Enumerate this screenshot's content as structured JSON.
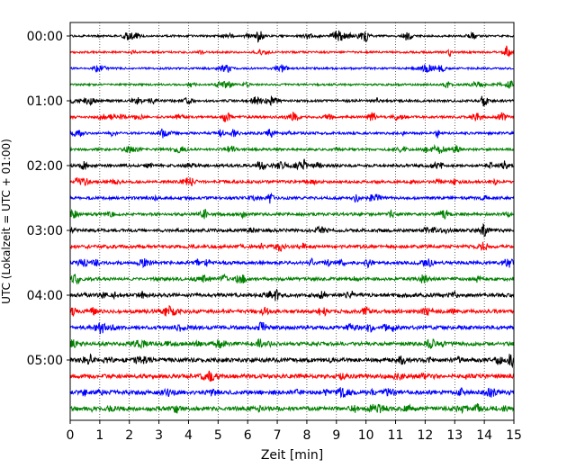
{
  "chart_data": {
    "type": "line",
    "title": "",
    "xlabel": "Zeit  [min]",
    "ylabel": "UTC (Lokalzeit = UTC + 01:00)",
    "xlim": [
      0,
      15
    ],
    "x_ticks": [
      0,
      1,
      2,
      3,
      4,
      5,
      6,
      7,
      8,
      9,
      10,
      11,
      12,
      13,
      14,
      15
    ],
    "y_tick_labels": [
      "00:00",
      "01:00",
      "02:00",
      "03:00",
      "04:00",
      "05:00"
    ],
    "traces_per_hour": 4,
    "trace_count": 24,
    "trace_colors": [
      "#000000",
      "#ff0000",
      "#0000ff",
      "#008000"
    ],
    "x_grid": true,
    "grid_style": "dotted",
    "legend": "none",
    "notable_bursts": [
      {
        "trace": 0,
        "x": [
          6.4,
          10.0,
          11.4
        ]
      },
      {
        "trace": 4,
        "x": [
          14.0
        ]
      },
      {
        "trace": 5,
        "x": [
          5.3
        ]
      },
      {
        "trace": 12,
        "x": [
          14.0
        ]
      },
      {
        "trace": 20,
        "x": [
          14.9
        ]
      }
    ]
  }
}
